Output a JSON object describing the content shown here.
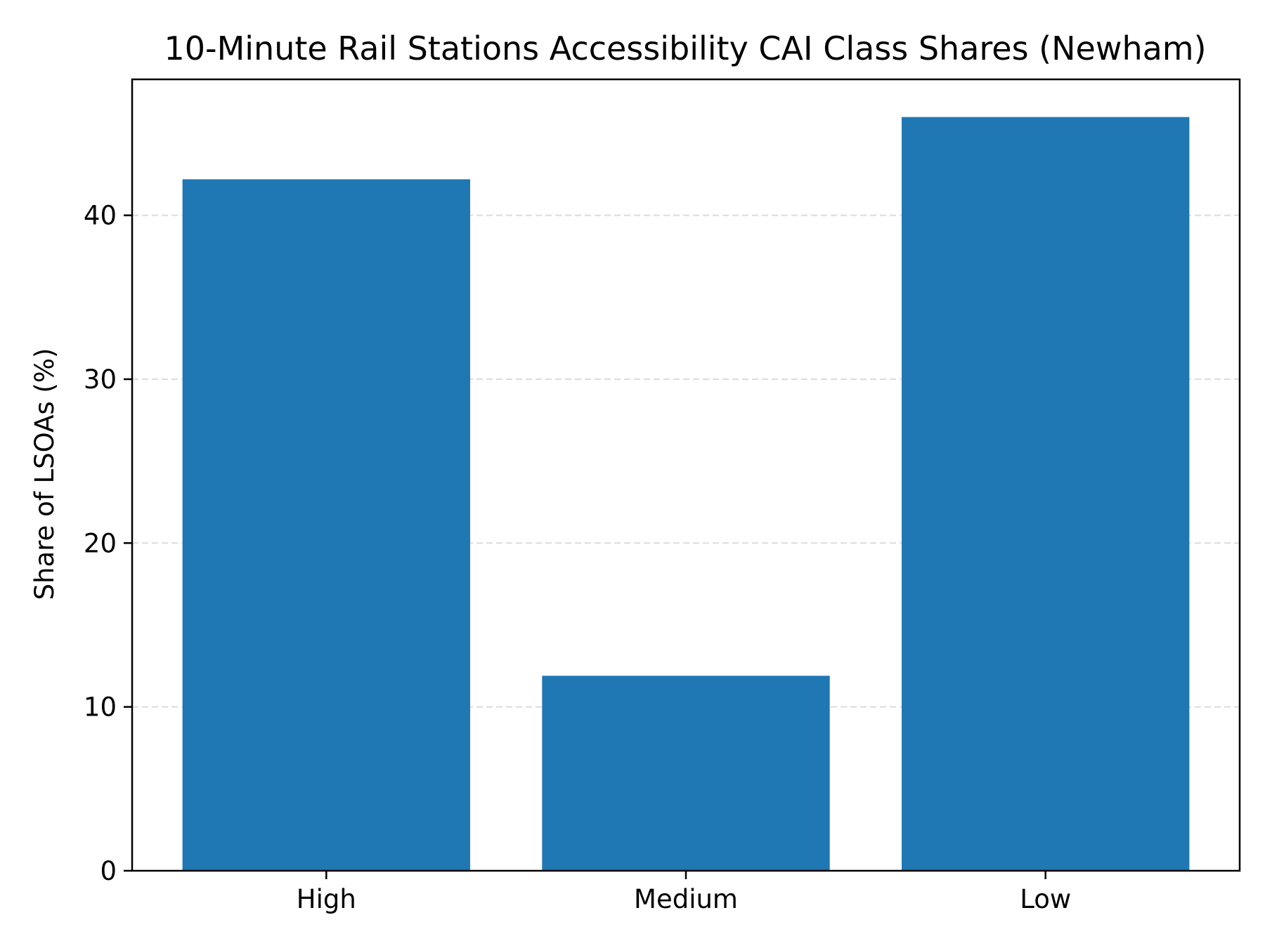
{
  "chart_data": {
    "type": "bar",
    "title": "10-Minute Rail Stations Accessibility CAI Class Shares (Newham)",
    "xlabel": "",
    "ylabel": "Share of LSOAs (%)",
    "categories": [
      "High",
      "Medium",
      "Low"
    ],
    "values": [
      42.2,
      11.9,
      46.0
    ],
    "ylim": [
      0,
      48.3
    ],
    "yticks": [
      0,
      10,
      20,
      30,
      40
    ],
    "grid": "y-dashed",
    "legend": "none",
    "bar_color": "#1f77b4",
    "grid_color": "#dddddd"
  }
}
